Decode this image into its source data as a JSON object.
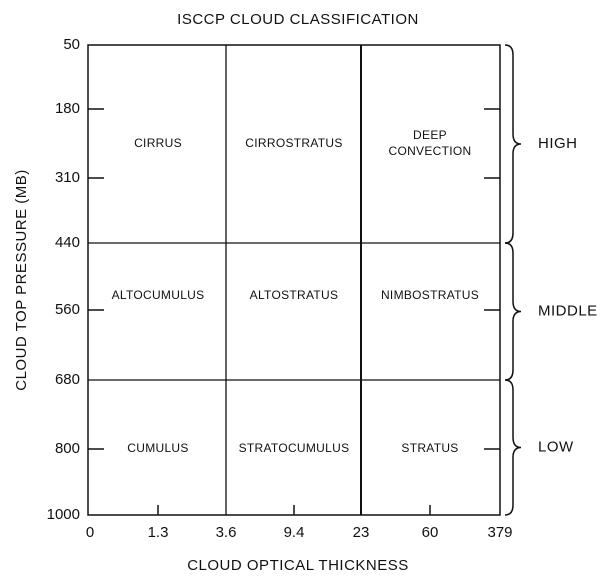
{
  "title": "ISCCP CLOUD CLASSIFICATION",
  "y_axis": {
    "label": "CLOUD TOP PRESSURE (MB)",
    "ticks": [
      "50",
      "180",
      "310",
      "440",
      "560",
      "680",
      "800",
      "1000"
    ]
  },
  "x_axis": {
    "label": "CLOUD OPTICAL THICKNESS",
    "ticks": [
      "0",
      "1.3",
      "3.6",
      "9.4",
      "23",
      "60",
      "379"
    ]
  },
  "cells": [
    [
      [
        "CIRRUS"
      ],
      [
        "CIRROSTRATUS"
      ],
      [
        "DEEP",
        "CONVECTION"
      ]
    ],
    [
      [
        "ALTOCUMULUS"
      ],
      [
        "ALTOSTRATUS"
      ],
      [
        "NIMBOSTRATUS"
      ]
    ],
    [
      [
        "CUMULUS"
      ],
      [
        "STRATOCUMULUS"
      ],
      [
        "STRATUS"
      ]
    ]
  ],
  "groups": [
    "HIGH",
    "MIDDLE",
    "LOW"
  ]
}
